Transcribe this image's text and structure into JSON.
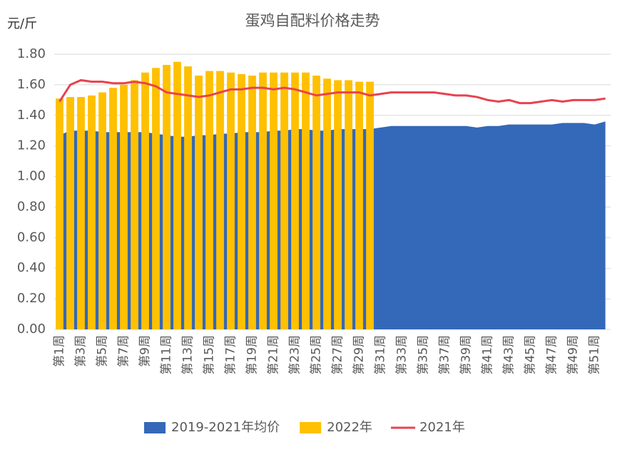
{
  "chart_data": {
    "type": "combo",
    "title": "蛋鸡自配料价格走势",
    "y_label": "元/斤",
    "categories": [
      "第1周",
      null,
      "第3周",
      null,
      "第5周",
      null,
      "第7周",
      null,
      "第9周",
      null,
      "第11周",
      null,
      "第13周",
      null,
      "第15周",
      null,
      "第17周",
      null,
      "第19周",
      null,
      "第21周",
      null,
      "第23周",
      null,
      "第25周",
      null,
      "第27周",
      null,
      "第29周",
      null,
      "第31周",
      null,
      "第33周",
      null,
      "第35周",
      null,
      "第37周",
      null,
      "第39周",
      null,
      "第41周",
      null,
      "第43周",
      null,
      "第45周",
      null,
      "第47周",
      null,
      "第49周",
      null,
      "第51周",
      null
    ],
    "series": [
      {
        "name": "2019-2021年均价",
        "type": "area",
        "color": "#3468b8",
        "values": [
          1.27,
          1.3,
          1.3,
          1.3,
          1.29,
          1.29,
          1.29,
          1.29,
          1.29,
          1.28,
          1.27,
          1.26,
          1.26,
          1.27,
          1.27,
          1.28,
          1.28,
          1.29,
          1.29,
          1.29,
          1.3,
          1.3,
          1.31,
          1.31,
          1.3,
          1.3,
          1.31,
          1.31,
          1.31,
          1.31,
          1.32,
          1.33,
          1.33,
          1.33,
          1.33,
          1.33,
          1.33,
          1.33,
          1.33,
          1.32,
          1.33,
          1.33,
          1.34,
          1.34,
          1.34,
          1.34,
          1.34,
          1.35,
          1.35,
          1.35,
          1.34,
          1.36
        ]
      },
      {
        "name": "2022年",
        "type": "bar",
        "color": "#ffc000",
        "values": [
          1.51,
          1.52,
          1.52,
          1.53,
          1.55,
          1.58,
          1.6,
          1.63,
          1.68,
          1.71,
          1.73,
          1.75,
          1.72,
          1.66,
          1.69,
          1.69,
          1.68,
          1.67,
          1.66,
          1.68,
          1.68,
          1.68,
          1.68,
          1.68,
          1.66,
          1.64,
          1.63,
          1.63,
          1.62,
          1.62,
          null,
          null,
          null,
          null,
          null,
          null,
          null,
          null,
          null,
          null,
          null,
          null,
          null,
          null,
          null,
          null,
          null,
          null,
          null,
          null,
          null,
          null
        ]
      },
      {
        "name": "2021年",
        "type": "line",
        "color": "#e8424f",
        "values": [
          1.49,
          1.6,
          1.63,
          1.62,
          1.62,
          1.61,
          1.61,
          1.62,
          1.61,
          1.59,
          1.55,
          1.54,
          1.53,
          1.52,
          1.53,
          1.55,
          1.57,
          1.57,
          1.58,
          1.58,
          1.57,
          1.58,
          1.57,
          1.55,
          1.53,
          1.54,
          1.55,
          1.55,
          1.55,
          1.53,
          1.54,
          1.55,
          1.55,
          1.55,
          1.55,
          1.55,
          1.54,
          1.53,
          1.53,
          1.52,
          1.5,
          1.49,
          1.5,
          1.48,
          1.48,
          1.49,
          1.5,
          1.49,
          1.5,
          1.5,
          1.5,
          1.51
        ]
      }
    ],
    "ylim": [
      0,
      1.8
    ],
    "yticks": [
      {
        "value": 0,
        "label": "0.00"
      },
      {
        "value": 0.2,
        "label": "0.20"
      },
      {
        "value": 0.4,
        "label": "0.40"
      },
      {
        "value": 0.6,
        "label": "0.60"
      },
      {
        "value": 0.8,
        "label": "0.80"
      },
      {
        "value": 1.0,
        "label": "1.00"
      },
      {
        "value": 1.2,
        "label": "1.20"
      },
      {
        "value": 1.4,
        "label": "1.40"
      },
      {
        "value": 1.6,
        "label": "1.60"
      },
      {
        "value": 1.8,
        "label": "1.80"
      }
    ],
    "grid": true,
    "legend": "bottom"
  }
}
